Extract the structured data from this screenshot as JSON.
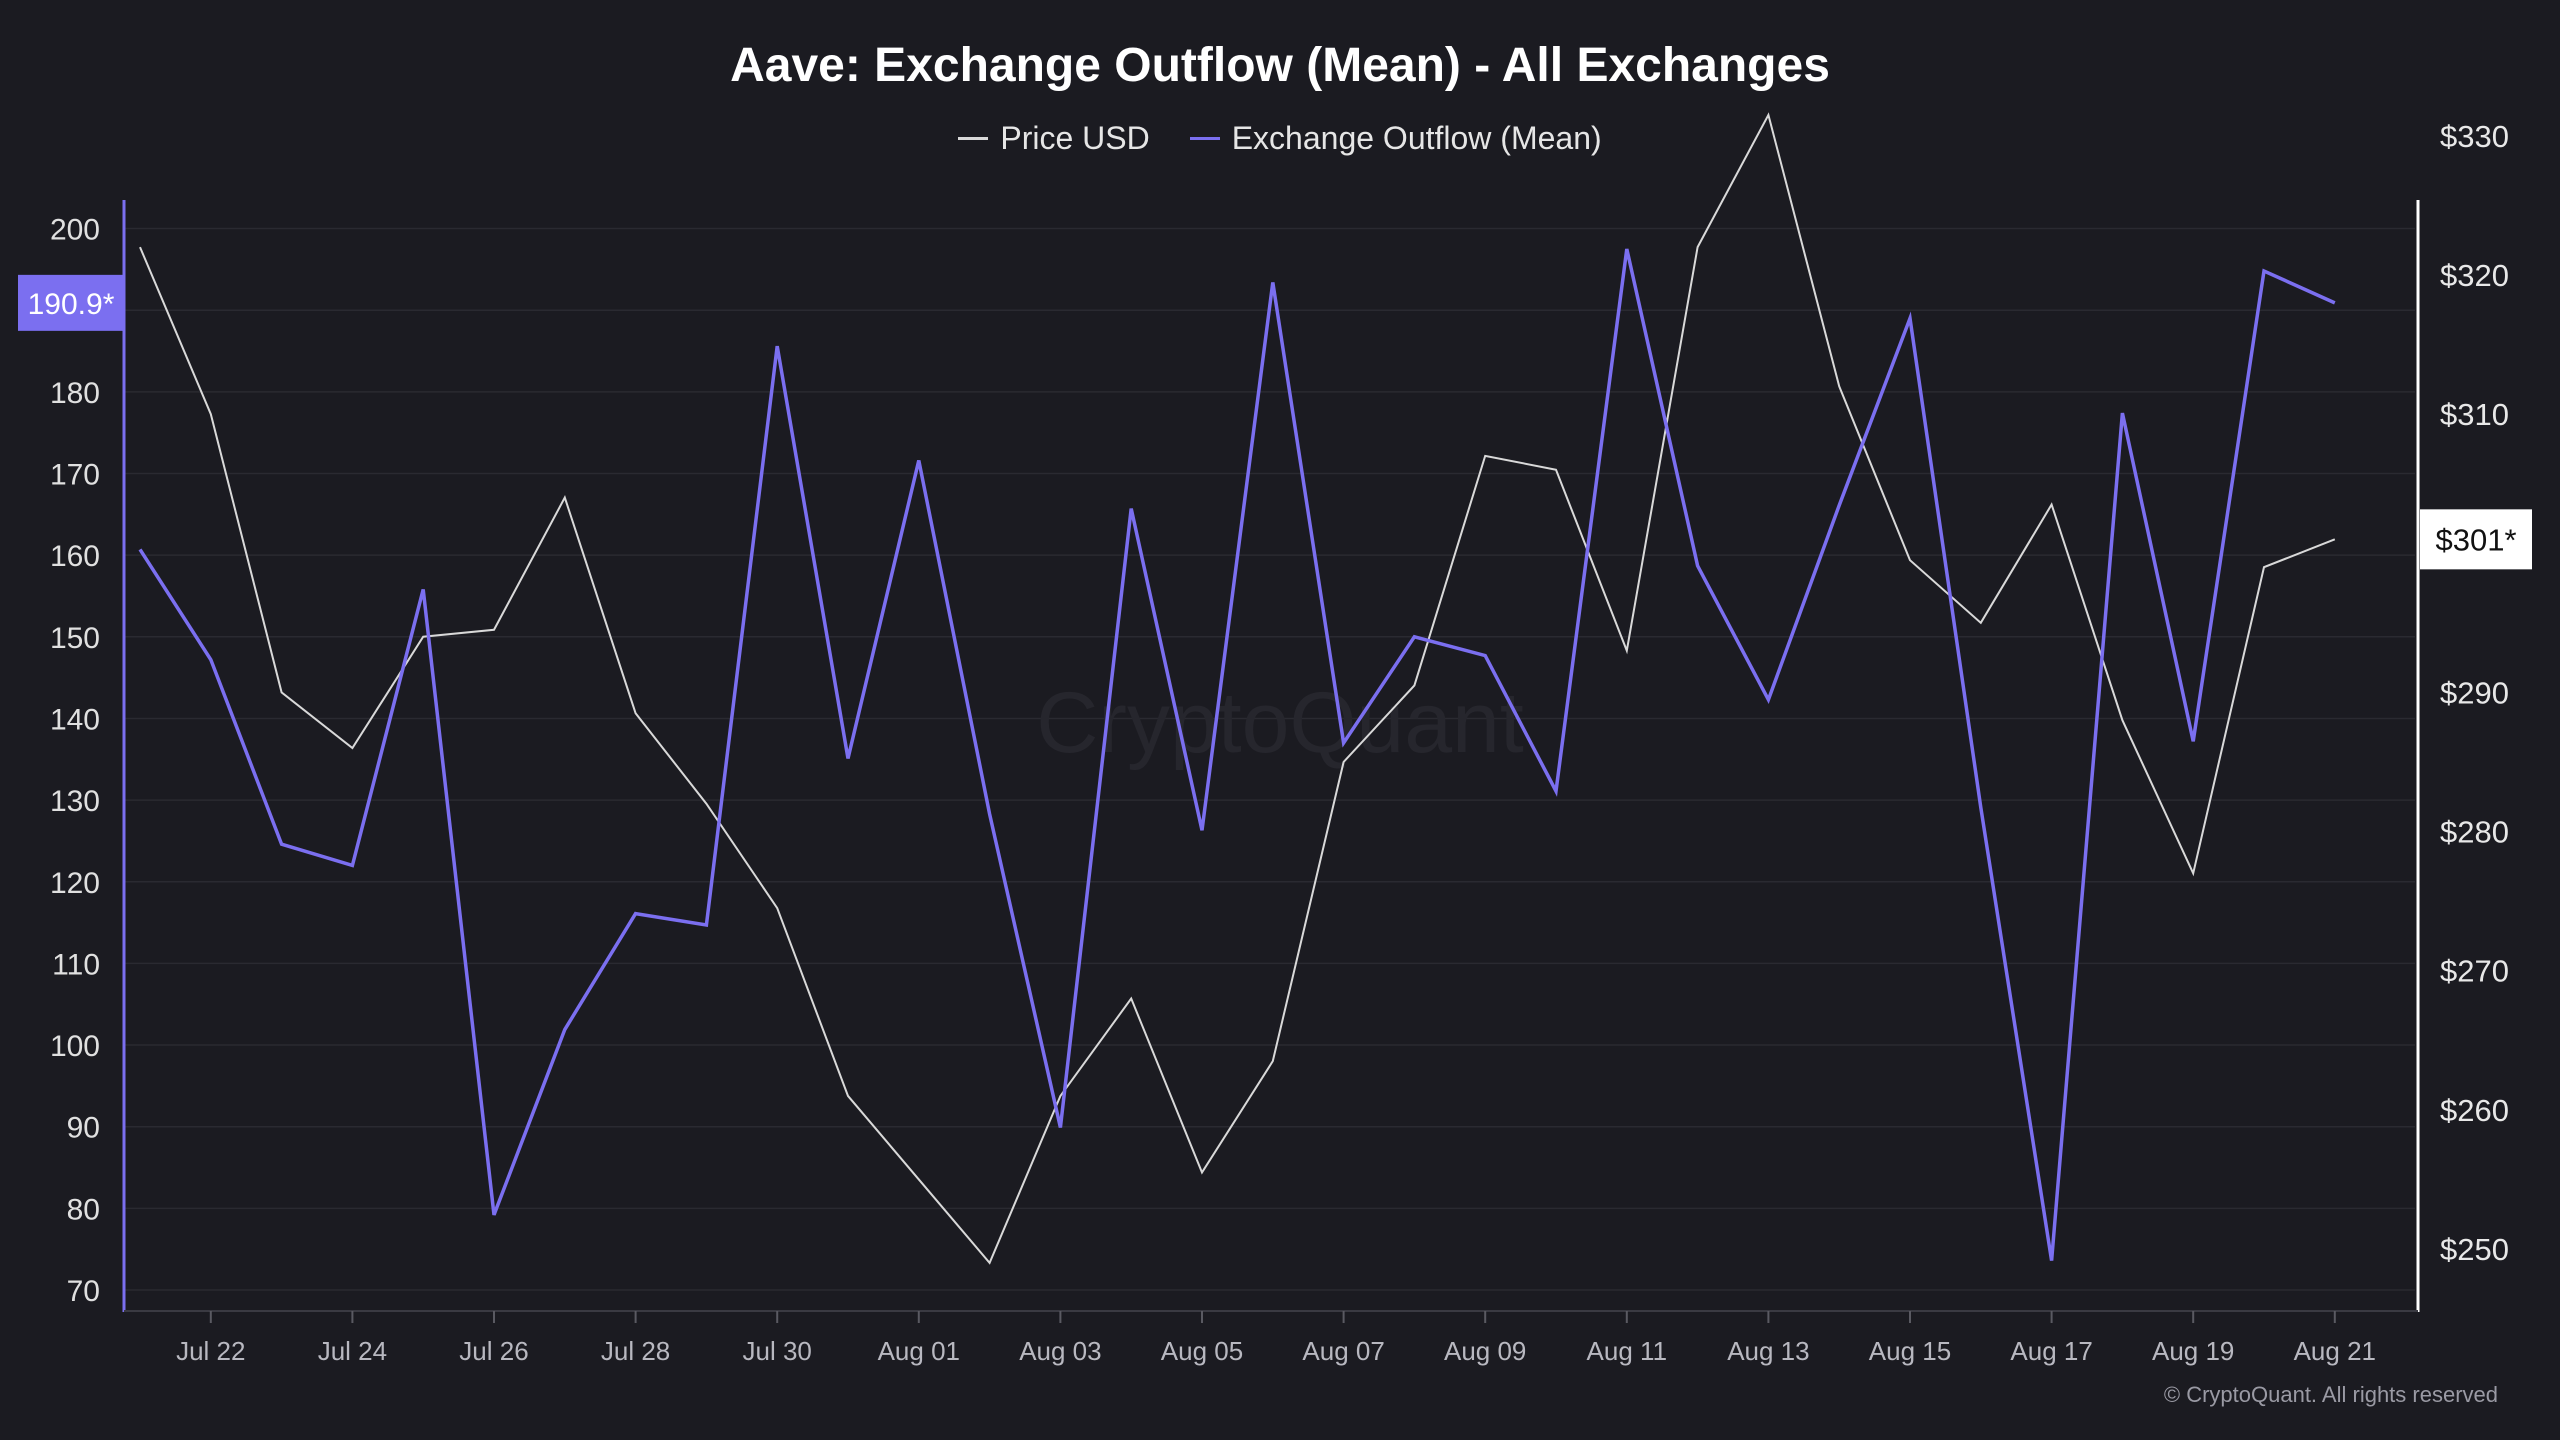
{
  "chart_data": {
    "type": "line",
    "title": "Aave: Exchange Outflow (Mean) - All Exchanges",
    "x": [
      "Jul 21",
      "Jul 22",
      "Jul 23",
      "Jul 24",
      "Jul 25",
      "Jul 26",
      "Jul 27",
      "Jul 28",
      "Jul 29",
      "Jul 30",
      "Jul 31",
      "Aug 01",
      "Aug 02",
      "Aug 03",
      "Aug 04",
      "Aug 05",
      "Aug 06",
      "Aug 07",
      "Aug 08",
      "Aug 09",
      "Aug 10",
      "Aug 11",
      "Aug 12",
      "Aug 13",
      "Aug 14",
      "Aug 15",
      "Aug 16",
      "Aug 17",
      "Aug 18",
      "Aug 19",
      "Aug 20",
      "Aug 21"
    ],
    "x_tick_labels": [
      "Jul 22",
      "Jul 24",
      "Jul 26",
      "Jul 28",
      "Jul 30",
      "Aug 01",
      "Aug 03",
      "Aug 05",
      "Aug 07",
      "Aug 09",
      "Aug 11",
      "Aug 13",
      "Aug 15",
      "Aug 17",
      "Aug 19",
      "Aug 21"
    ],
    "series": [
      {
        "name": "Price USD",
        "axis": "right",
        "color": "#d9d9d9",
        "values": [
          322,
          310,
          290,
          286,
          294,
          294.5,
          304,
          288.5,
          282,
          274.5,
          261,
          255,
          249,
          261,
          268,
          255.5,
          263.5,
          285,
          290.5,
          307,
          306,
          293,
          322,
          331.5,
          312,
          299.5,
          295,
          303.5,
          288,
          277,
          299,
          301
        ]
      },
      {
        "name": "Exchange Outflow (Mean)",
        "axis": "left",
        "color": "#7b6ff0",
        "values": [
          160.7,
          147.2,
          124.6,
          122.0,
          155.8,
          79.2,
          101.9,
          116.1,
          114.7,
          185.6,
          135.1,
          171.6,
          128.3,
          89.9,
          165.7,
          126.3,
          193.4,
          137.0,
          150.0,
          147.7,
          131.1,
          197.5,
          158.7,
          142.3,
          166.1,
          189.0,
          129.1,
          73.6,
          177.4,
          137.2,
          194.8,
          190.9
        ]
      }
    ],
    "y_left": {
      "ticks": [
        70,
        80,
        90,
        100,
        110,
        120,
        130,
        140,
        150,
        160,
        170,
        180,
        190,
        200
      ],
      "tick_labels": [
        "70",
        "80",
        "90",
        "100",
        "110",
        "120",
        "130",
        "140",
        "150",
        "160",
        "170",
        "180",
        "",
        "200"
      ],
      "ylim": [
        70,
        200
      ],
      "current_label": "190.9*"
    },
    "y_right": {
      "ticks": [
        250,
        260,
        270,
        280,
        290,
        300,
        310,
        320,
        330
      ],
      "tick_labels": [
        "$250",
        "$260",
        "$270",
        "",
        "$290",
        "",
        "$310",
        "$320",
        "$330"
      ],
      "extra_label": "$280",
      "ylim": [
        247,
        332
      ],
      "current_label": "$301*"
    },
    "grid": true,
    "legend_position": "top-center"
  },
  "colors": {
    "background": "#1b1b21",
    "grid": "#2a2a31",
    "outflow": "#7b6ff0",
    "price": "#d9d9d9"
  },
  "watermark": "CryptoQuant",
  "copyright": "© CryptoQuant. All rights reserved"
}
